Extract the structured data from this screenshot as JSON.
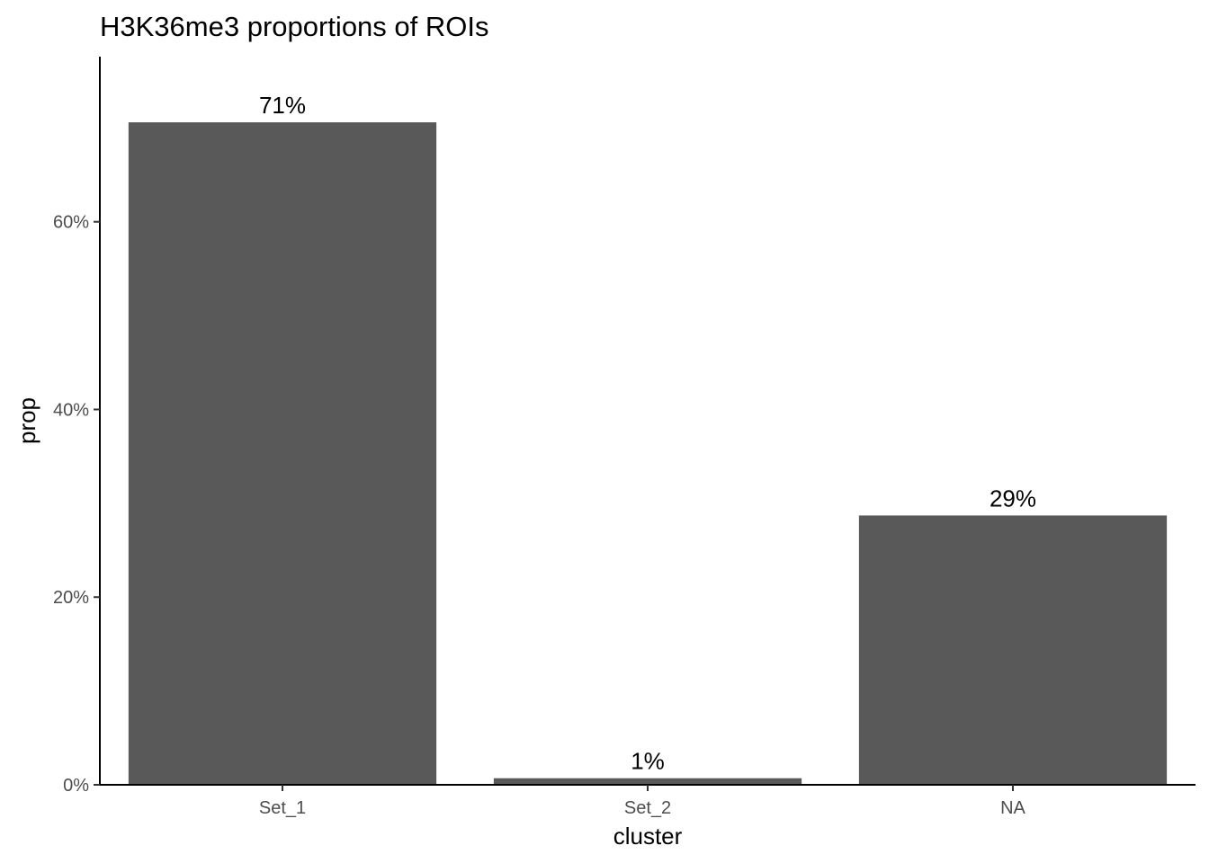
{
  "chart_data": {
    "type": "bar",
    "title": "H3K36me3 proportions of ROIs",
    "xlabel": "cluster",
    "ylabel": "prop",
    "categories": [
      "Set_1",
      "Set_2",
      "NA"
    ],
    "values": [
      0.706,
      0.007,
      0.287
    ],
    "data_labels": [
      "71%",
      "1%",
      "29%"
    ],
    "ylim": [
      0,
      0.776
    ],
    "yticks": [
      0,
      0.2,
      0.4,
      0.6
    ],
    "ytick_labels": [
      "0%",
      "20%",
      "40%",
      "60%"
    ],
    "grid": false,
    "legend": "none",
    "bar_color": "#595959"
  }
}
